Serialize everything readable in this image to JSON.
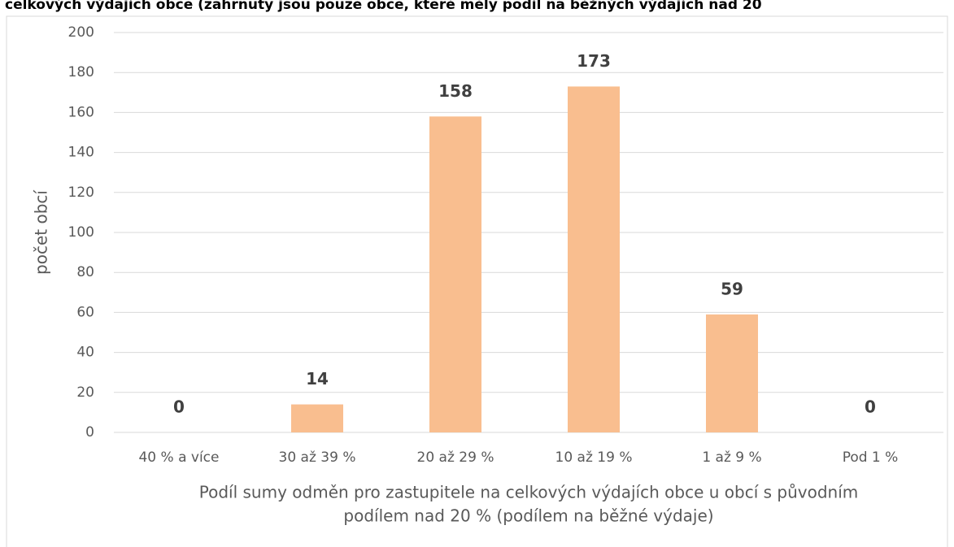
{
  "chart_data": {
    "type": "bar",
    "title": "celkových výdajích obce (zahrnuty jsou pouze obce, které měly podíl na běžných výdajích nad 20",
    "categories": [
      "40 % a více",
      "30 až 39 %",
      "20 až 29 %",
      "10 až 19 %",
      "1 až 9 %",
      "Pod 1 %"
    ],
    "values": [
      0,
      14,
      158,
      173,
      59,
      0
    ],
    "color": "#f9be8f",
    "ylabel": "počet obcí",
    "xlabel": [
      "Podíl sumy odměn pro zastupitele na celkových výdajích obce u obcí s původním",
      "podílem nad 20 % (podílem na běžné výdaje)"
    ],
    "ylim": [
      0,
      200
    ],
    "yticks": [
      0,
      20,
      40,
      60,
      80,
      100,
      120,
      140,
      160,
      180,
      200
    ],
    "grid": true
  }
}
